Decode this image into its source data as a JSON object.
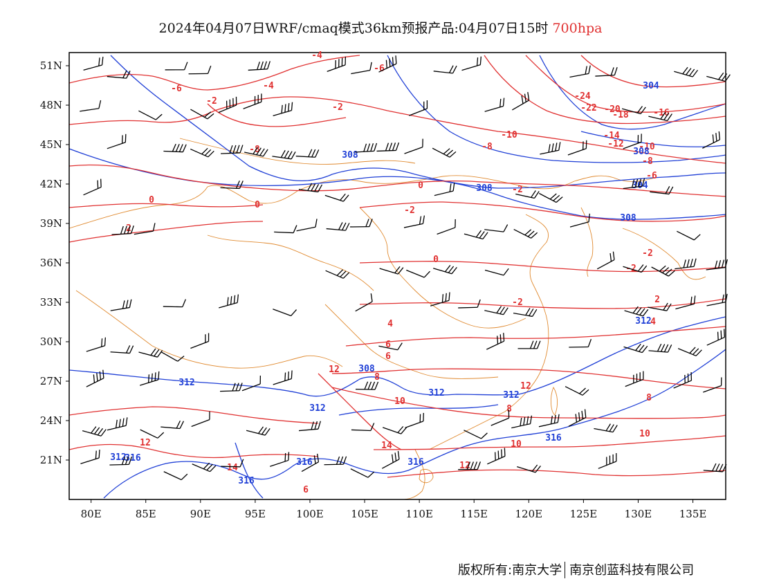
{
  "title": {
    "main": "2024年04月07日WRF/cmaq模式36km预报产品:04月07日15时",
    "level": "700hpa"
  },
  "axes": {
    "x_ticks": [
      "80E",
      "85E",
      "90E",
      "95E",
      "100E",
      "105E",
      "110E",
      "115E",
      "120E",
      "125E",
      "130E",
      "135E"
    ],
    "y_ticks": [
      "51N",
      "48N",
      "45N",
      "42N",
      "39N",
      "36N",
      "33N",
      "30N",
      "27N",
      "24N",
      "21N"
    ],
    "lon_range": [
      78,
      138
    ],
    "lat_range": [
      18,
      52
    ]
  },
  "colors": {
    "temperature": "#e03030",
    "height": "#1f3fd6",
    "coast": "#e08a30",
    "wind": "#000000"
  },
  "layers": {
    "temperature_labels": [
      "-4",
      "-6",
      "-6",
      "-4",
      "-2",
      "-8",
      "-2",
      "0",
      "2",
      "0",
      "-2",
      "0",
      "-10",
      "-8",
      "-24",
      "-22",
      "-20",
      "-18",
      "-16",
      "-14",
      "-12",
      "-10",
      "-8",
      "-6",
      "-2",
      "-2",
      "0",
      "-2",
      "-2",
      "2",
      "4",
      "4",
      "6",
      "6",
      "8",
      "10",
      "12",
      "14",
      "12",
      "10",
      "8",
      "12",
      "12",
      "14",
      "6",
      "8",
      "10"
    ],
    "height_labels": [
      "304",
      "308",
      "308",
      "308",
      "304",
      "308",
      "308",
      "312",
      "312",
      "312",
      "312",
      "312",
      "312",
      "316",
      "316",
      "316",
      "316",
      "316"
    ]
  },
  "footer": {
    "left": "版权所有:南京大学",
    "right": "南京创蓝科技有限公司"
  }
}
